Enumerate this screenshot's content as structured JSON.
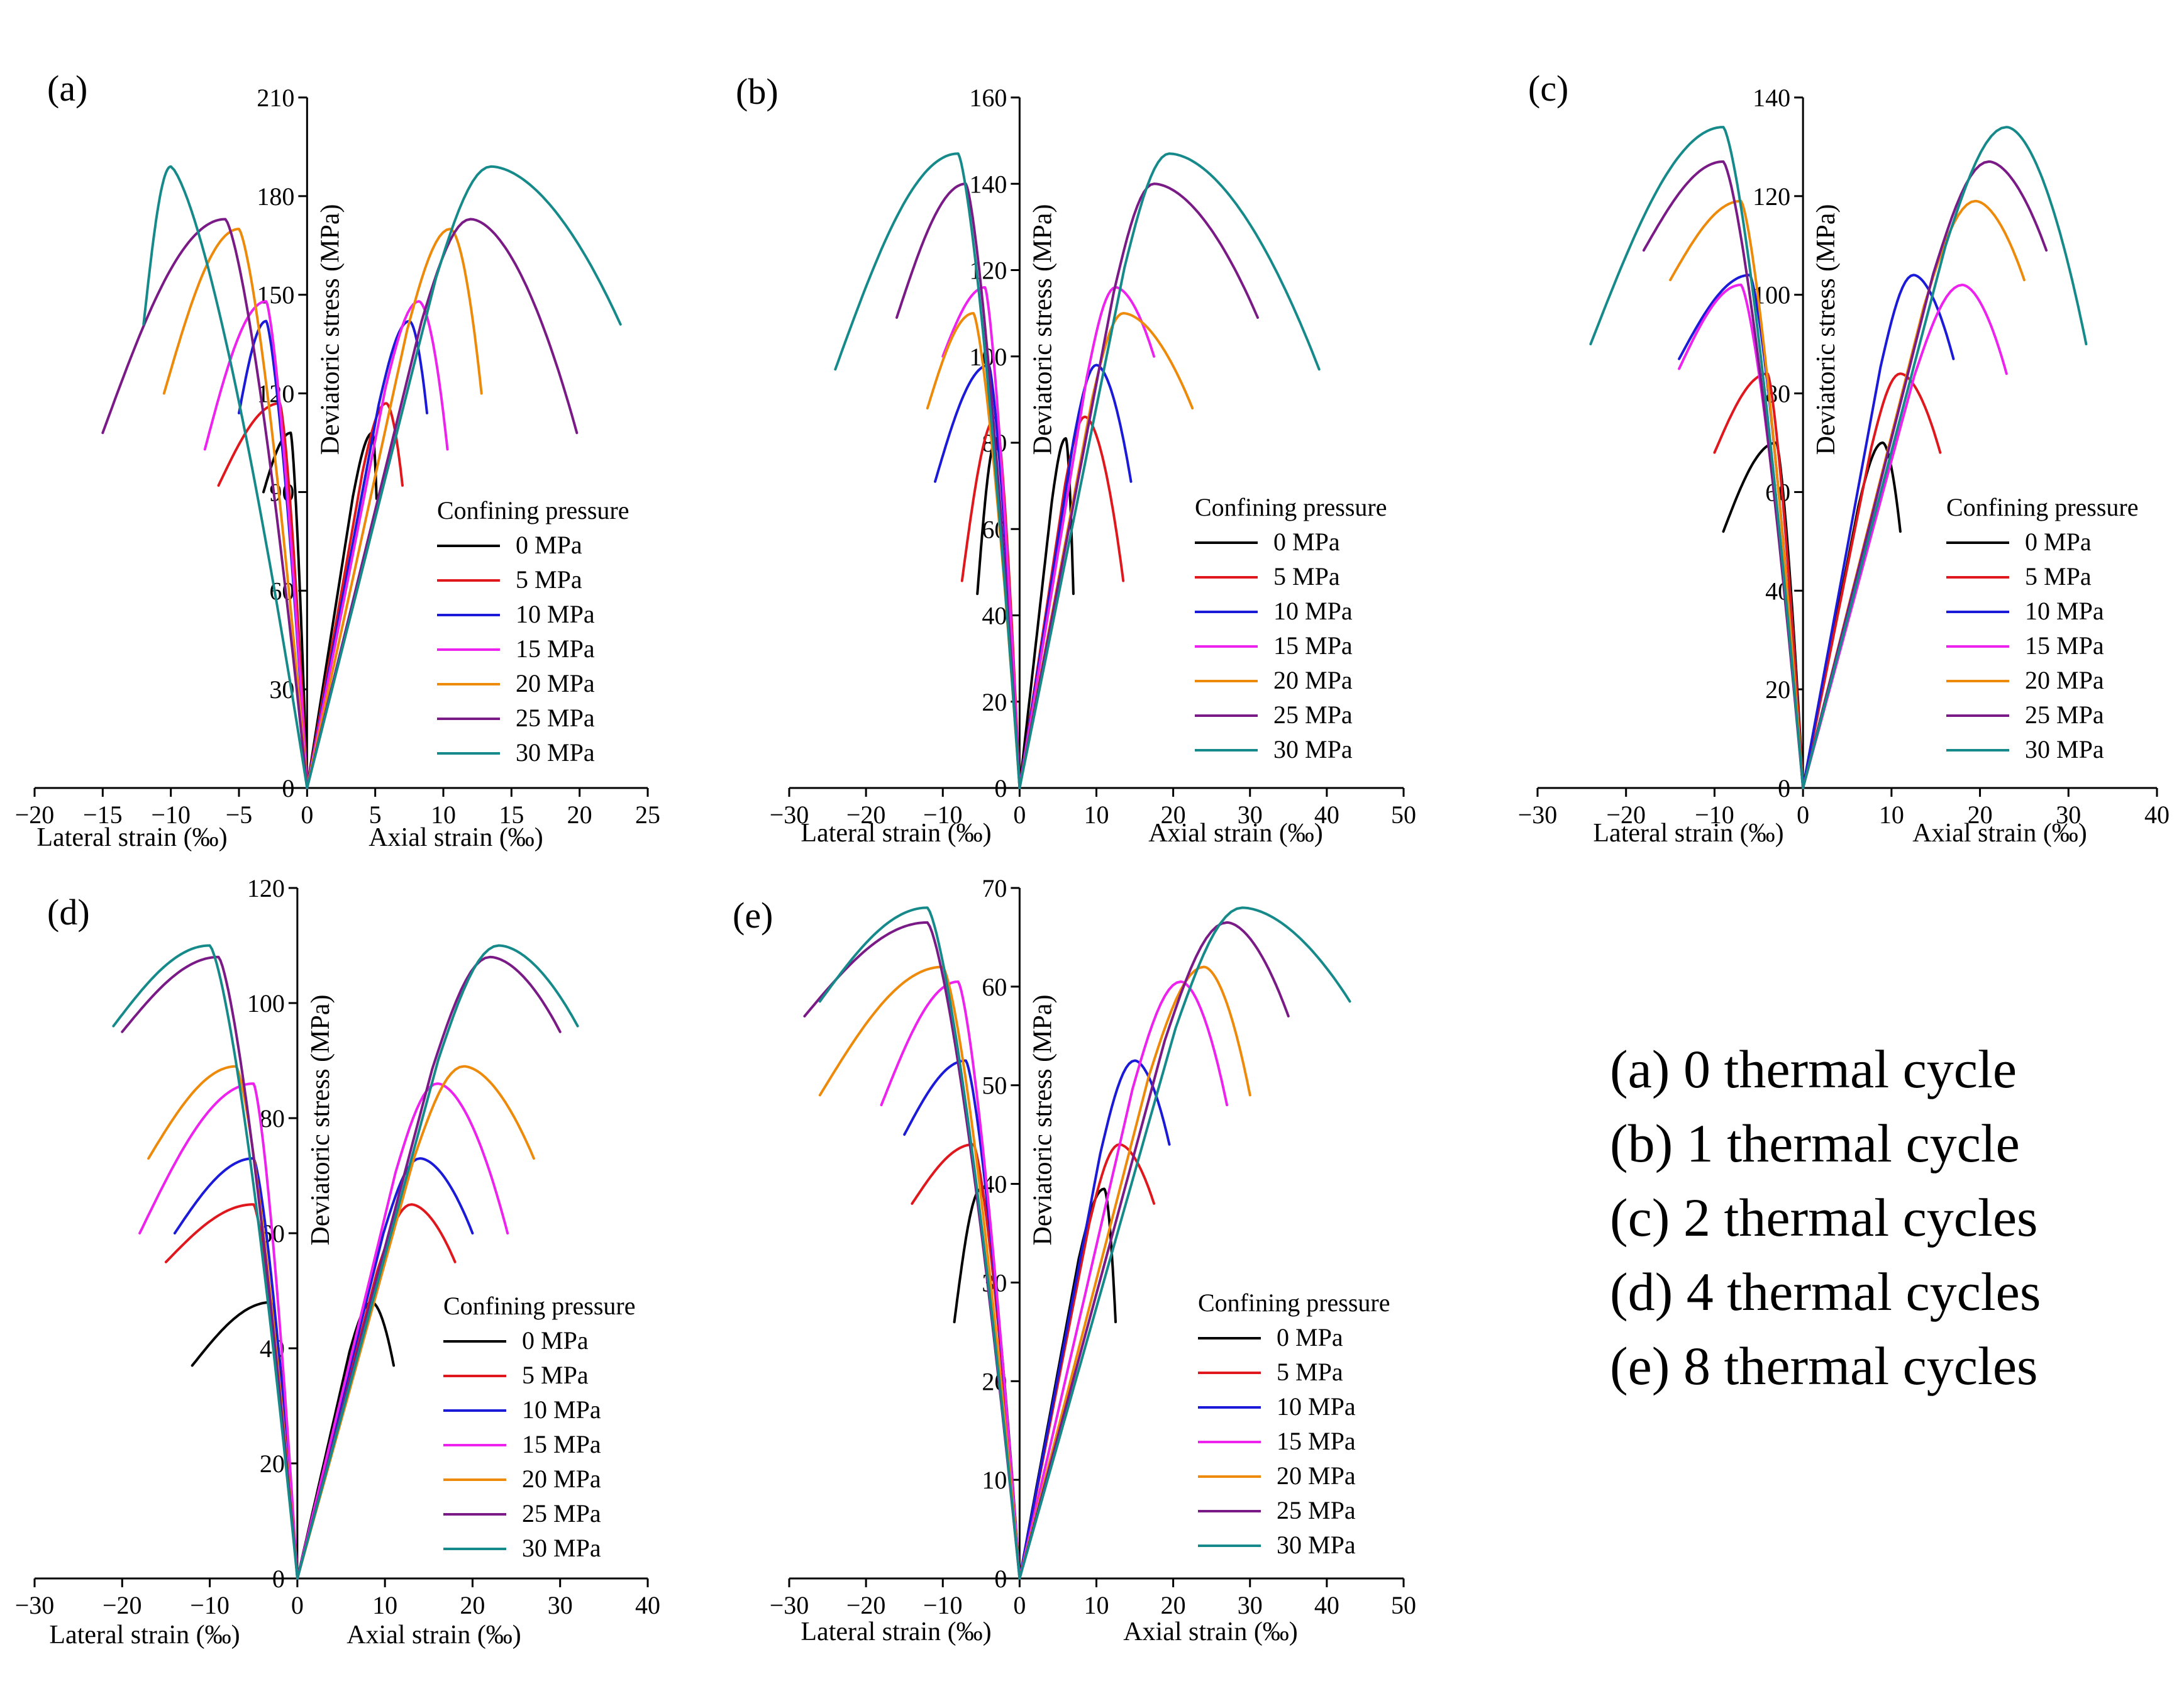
{
  "figure": {
    "captions": [
      "(a) 0 thermal cycle",
      "(b) 1 thermal cycle",
      "(c) 2 thermal cycles",
      "(d) 4 thermal cycles",
      "(e) 8 thermal cycles"
    ],
    "legend_title": "Confining pressure",
    "legend_items": [
      "0 MPa",
      "5 MPa",
      "10 MPa",
      "15 MPa",
      "20 MPa",
      "25 MPa",
      "30 MPa"
    ],
    "series_colors": [
      "#000000",
      "#e0181d",
      "#1a1ad8",
      "#ee22ee",
      "#ee8a0a",
      "#7a1a86",
      "#168a8a"
    ]
  },
  "chart_data": [
    {
      "type": "line",
      "panel": "(a)",
      "ylabel": "Deviatoric stress (MPa)",
      "xlabel_left": "Lateral strain (‰)",
      "xlabel_right": "Axial strain (‰)",
      "xlim": [
        -20,
        25
      ],
      "ylim": [
        0,
        210
      ],
      "xticks": [
        -20,
        -15,
        -10,
        -5,
        0,
        5,
        10,
        15,
        20,
        25
      ],
      "yticks": [
        0,
        30,
        60,
        90,
        120,
        150,
        180,
        210
      ],
      "series": [
        {
          "name": "0 MPa",
          "peak": 108,
          "axial_peak": 4.8,
          "axial_end": 5.1,
          "lat_peak": -1.2,
          "lat_end": -3.2,
          "res": 88,
          "res_lat": 90
        },
        {
          "name": "5 MPa",
          "peak": 117,
          "axial_peak": 5.8,
          "axial_end": 7.0,
          "lat_peak": -2.0,
          "lat_end": -6.5,
          "res": 92,
          "res_lat": 92
        },
        {
          "name": "10 MPa",
          "peak": 142,
          "axial_peak": 7.5,
          "axial_end": 8.8,
          "lat_peak": -3.0,
          "lat_end": -5.0,
          "res": 114,
          "res_lat": 114
        },
        {
          "name": "15 MPa",
          "peak": 148,
          "axial_peak": 8.2,
          "axial_end": 10.3,
          "lat_peak": -3.0,
          "lat_end": -7.5,
          "res": 103,
          "res_lat": 103
        },
        {
          "name": "20 MPa",
          "peak": 170,
          "axial_peak": 10.5,
          "axial_end": 12.8,
          "lat_peak": -5.0,
          "lat_end": -10.5,
          "res": 120,
          "res_lat": 120
        },
        {
          "name": "25 MPa",
          "peak": 173,
          "axial_peak": 12.0,
          "axial_end": 19.8,
          "lat_peak": -6.0,
          "lat_end": -15.0,
          "res": 108,
          "res_lat": 108
        },
        {
          "name": "30 MPa",
          "peak": 189,
          "axial_peak": 13.5,
          "axial_end": 23.0,
          "lat_peak": -10.0,
          "lat_end": -12.0,
          "res": 141,
          "res_lat": 141
        }
      ]
    },
    {
      "type": "line",
      "panel": "(b)",
      "ylabel": "Deviatoric stress (MPa)",
      "xlabel_left": "Lateral strain (‰)",
      "xlabel_right": "Axial strain (‰)",
      "xlim": [
        -30,
        50
      ],
      "ylim": [
        0,
        160
      ],
      "xticks": [
        -30,
        -20,
        -10,
        0,
        10,
        20,
        30,
        40,
        50
      ],
      "yticks": [
        0,
        20,
        40,
        60,
        80,
        100,
        120,
        140,
        160
      ],
      "series": [
        {
          "name": "0 MPa",
          "peak": 81,
          "axial_peak": 6.0,
          "axial_end": 7.0,
          "lat_peak": -3.0,
          "lat_end": -5.5,
          "res": 45,
          "res_lat": 45
        },
        {
          "name": "5 MPa",
          "peak": 86,
          "axial_peak": 8.5,
          "axial_end": 13.5,
          "lat_peak": -3.0,
          "lat_end": -7.5,
          "res": 48,
          "res_lat": 48
        },
        {
          "name": "10 MPa",
          "peak": 98,
          "axial_peak": 10.0,
          "axial_end": 14.5,
          "lat_peak": -4.0,
          "lat_end": -11.0,
          "res": 71,
          "res_lat": 71
        },
        {
          "name": "15 MPa",
          "peak": 116,
          "axial_peak": 12.5,
          "axial_end": 17.5,
          "lat_peak": -4.5,
          "lat_end": -10.0,
          "res": 100,
          "res_lat": 100
        },
        {
          "name": "20 MPa",
          "peak": 110,
          "axial_peak": 13.5,
          "axial_end": 22.5,
          "lat_peak": -6.0,
          "lat_end": -12.0,
          "res": 88,
          "res_lat": 88
        },
        {
          "name": "25 MPa",
          "peak": 140,
          "axial_peak": 17.5,
          "axial_end": 31.0,
          "lat_peak": -7.0,
          "lat_end": -16.0,
          "res": 109,
          "res_lat": 109
        },
        {
          "name": "30 MPa",
          "peak": 147,
          "axial_peak": 19.5,
          "axial_end": 39.0,
          "lat_peak": -8.0,
          "lat_end": -24.0,
          "res": 97,
          "res_lat": 97
        }
      ]
    },
    {
      "type": "line",
      "panel": "(c)",
      "ylabel": "Deviatoric stress (MPa)",
      "xlabel_left": "Lateral strain (‰)",
      "xlabel_right": "Axial strain (‰)",
      "xlim": [
        -30,
        40
      ],
      "ylim": [
        0,
        140
      ],
      "xticks": [
        -30,
        -20,
        -10,
        0,
        10,
        20,
        30,
        40
      ],
      "yticks": [
        0,
        20,
        40,
        60,
        80,
        100,
        120,
        140
      ],
      "series": [
        {
          "name": "0 MPa",
          "peak": 70,
          "axial_peak": 9.0,
          "axial_end": 11.0,
          "lat_peak": -3.0,
          "lat_end": -9.0,
          "res": 52,
          "res_lat": 52
        },
        {
          "name": "5 MPa",
          "peak": 84,
          "axial_peak": 11.0,
          "axial_end": 15.5,
          "lat_peak": -4.0,
          "lat_end": -10.0,
          "res": 68,
          "res_lat": 68
        },
        {
          "name": "10 MPa",
          "peak": 104,
          "axial_peak": 12.5,
          "axial_end": 17.0,
          "lat_peak": -6.0,
          "lat_end": -14.0,
          "res": 87,
          "res_lat": 87
        },
        {
          "name": "15 MPa",
          "peak": 102,
          "axial_peak": 18.0,
          "axial_end": 23.0,
          "lat_peak": -7.0,
          "lat_end": -14.0,
          "res": 84,
          "res_lat": 85
        },
        {
          "name": "20 MPa",
          "peak": 119,
          "axial_peak": 19.5,
          "axial_end": 25.0,
          "lat_peak": -7.0,
          "lat_end": -15.0,
          "res": 103,
          "res_lat": 103
        },
        {
          "name": "25 MPa",
          "peak": 127,
          "axial_peak": 21.0,
          "axial_end": 27.5,
          "lat_peak": -9.0,
          "lat_end": -18.0,
          "res": 109,
          "res_lat": 109
        },
        {
          "name": "30 MPa",
          "peak": 134,
          "axial_peak": 23.0,
          "axial_end": 32.0,
          "lat_peak": -9.0,
          "lat_end": -24.0,
          "res": 90,
          "res_lat": 90
        }
      ]
    },
    {
      "type": "line",
      "panel": "(d)",
      "ylabel": "Deviatoric stress (MPa)",
      "xlabel_left": "Lateral strain (‰)",
      "xlabel_right": "Axial strain (‰)",
      "xlim": [
        -30,
        40
      ],
      "ylim": [
        0,
        120
      ],
      "xticks": [
        -30,
        -20,
        -10,
        0,
        10,
        20,
        30,
        40
      ],
      "yticks": [
        0,
        20,
        40,
        60,
        80,
        100,
        120
      ],
      "series": [
        {
          "name": "0 MPa",
          "peak": 48,
          "axial_peak": 8.5,
          "axial_end": 11.0,
          "lat_peak": -3.0,
          "lat_end": -12.0,
          "res": 37,
          "res_lat": 37
        },
        {
          "name": "5 MPa",
          "peak": 65,
          "axial_peak": 13.0,
          "axial_end": 18.0,
          "lat_peak": -5.0,
          "lat_end": -15.0,
          "res": 55,
          "res_lat": 55
        },
        {
          "name": "10 MPa",
          "peak": 73,
          "axial_peak": 14.0,
          "axial_end": 20.0,
          "lat_peak": -5.0,
          "lat_end": -14.0,
          "res": 60,
          "res_lat": 60
        },
        {
          "name": "15 MPa",
          "peak": 86,
          "axial_peak": 16.0,
          "axial_end": 24.0,
          "lat_peak": -5.0,
          "lat_end": -18.0,
          "res": 60,
          "res_lat": 60
        },
        {
          "name": "20 MPa",
          "peak": 89,
          "axial_peak": 19.0,
          "axial_end": 27.0,
          "lat_peak": -7.0,
          "lat_end": -17.0,
          "res": 73,
          "res_lat": 73
        },
        {
          "name": "25 MPa",
          "peak": 108,
          "axial_peak": 22.0,
          "axial_end": 30.0,
          "lat_peak": -9.0,
          "lat_end": -20.0,
          "res": 95,
          "res_lat": 95
        },
        {
          "name": "30 MPa",
          "peak": 110,
          "axial_peak": 23.0,
          "axial_end": 32.0,
          "lat_peak": -10.0,
          "lat_end": -21.0,
          "res": 96,
          "res_lat": 96
        }
      ]
    },
    {
      "type": "line",
      "panel": "(e)",
      "ylabel": "Deviatoric stress (MPa)",
      "xlabel_left": "Lateral strain (‰)",
      "xlabel_right": "Axial strain (‰)",
      "xlim": [
        -30,
        50
      ],
      "ylim": [
        0,
        70
      ],
      "xticks": [
        -30,
        -20,
        -10,
        0,
        10,
        20,
        30,
        40,
        50
      ],
      "yticks": [
        0,
        10,
        20,
        30,
        40,
        50,
        60,
        70
      ],
      "series": [
        {
          "name": "0 MPa",
          "peak": 39.5,
          "axial_peak": 11.0,
          "axial_end": 12.5,
          "lat_peak": -5.0,
          "lat_end": -8.5,
          "res": 26,
          "res_lat": 26
        },
        {
          "name": "5 MPa",
          "peak": 44,
          "axial_peak": 13.0,
          "axial_end": 17.5,
          "lat_peak": -6.0,
          "lat_end": -14.0,
          "res": 38,
          "res_lat": 38
        },
        {
          "name": "10 MPa",
          "peak": 52.5,
          "axial_peak": 15.0,
          "axial_end": 19.5,
          "lat_peak": -7.0,
          "lat_end": -15.0,
          "res": 44,
          "res_lat": 45
        },
        {
          "name": "15 MPa",
          "peak": 60.5,
          "axial_peak": 21.0,
          "axial_end": 27.0,
          "lat_peak": -8.0,
          "lat_end": -18.0,
          "res": 48,
          "res_lat": 48
        },
        {
          "name": "20 MPa",
          "peak": 62,
          "axial_peak": 24.0,
          "axial_end": 30.0,
          "lat_peak": -10.0,
          "lat_end": -26.0,
          "res": 49,
          "res_lat": 49
        },
        {
          "name": "25 MPa",
          "peak": 66.5,
          "axial_peak": 27.0,
          "axial_end": 35.0,
          "lat_peak": -12.0,
          "lat_end": -28.0,
          "res": 57,
          "res_lat": 57
        },
        {
          "name": "30 MPa",
          "peak": 68,
          "axial_peak": 29.0,
          "axial_end": 43.0,
          "lat_peak": -12.0,
          "lat_end": -26.0,
          "res": 58.5,
          "res_lat": 58.5
        }
      ]
    }
  ]
}
